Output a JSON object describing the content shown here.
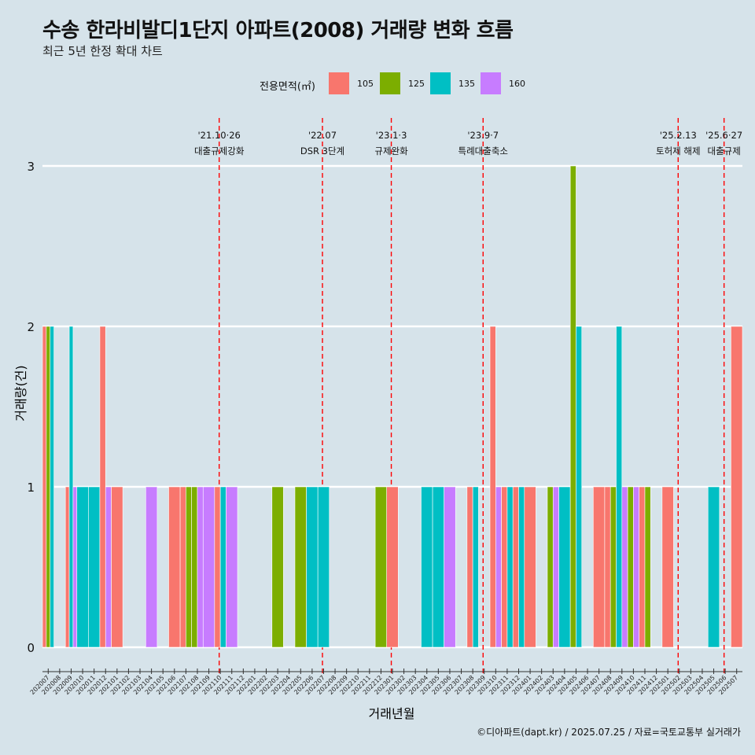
{
  "title": "수송 한라비발디1단지 아파트(2008) 거래량 변화 흐름",
  "subtitle": "최근 5년 한정 확대 차트",
  "caption": "©디아파트(dapt.kr) / 2025.07.25 / 자료=국토교통부 실거래가",
  "legend": {
    "title": "전용면적(㎡)",
    "items": [
      {
        "label": "105",
        "color": "#F8766D"
      },
      {
        "label": "125",
        "color": "#7CAE00"
      },
      {
        "label": "135",
        "color": "#00BFC4"
      },
      {
        "label": "160",
        "color": "#C77CFF"
      }
    ]
  },
  "chart_data": {
    "type": "bar",
    "xlabel": "거래년월",
    "ylabel": "거래량(건)",
    "ylim": [
      0,
      3
    ],
    "yticks": [
      0,
      1,
      2,
      3
    ],
    "categories": [
      "202007",
      "202008",
      "202009",
      "202010",
      "202011",
      "202012",
      "202101",
      "202102",
      "202103",
      "202104",
      "202105",
      "202106",
      "202107",
      "202108",
      "202109",
      "202110",
      "202111",
      "202112",
      "202201",
      "202202",
      "202203",
      "202204",
      "202205",
      "202206",
      "202207",
      "202208",
      "202209",
      "202210",
      "202211",
      "202212",
      "202301",
      "202302",
      "202303",
      "202304",
      "202305",
      "202306",
      "202307",
      "202308",
      "202309",
      "202310",
      "202311",
      "202312",
      "202401",
      "202402",
      "202403",
      "202404",
      "202405",
      "202406",
      "202407",
      "202408",
      "202409",
      "202410",
      "202411",
      "202412",
      "202501",
      "202502",
      "202503",
      "202504",
      "202505",
      "202506",
      "202507"
    ],
    "series": [
      {
        "name": "105",
        "color": "#F8766D",
        "values": [
          2,
          0,
          1,
          0,
          0,
          2,
          1,
          0,
          0,
          0,
          0,
          1,
          1,
          0,
          0,
          1,
          0,
          0,
          0,
          0,
          0,
          0,
          0,
          0,
          0,
          0,
          0,
          0,
          0,
          0,
          1,
          0,
          0,
          0,
          0,
          0,
          0,
          1,
          0,
          2,
          1,
          1,
          1,
          0,
          0,
          0,
          0,
          0,
          1,
          1,
          0,
          0,
          1,
          0,
          1,
          0,
          0,
          0,
          0,
          0,
          2
        ]
      },
      {
        "name": "125",
        "color": "#7CAE00",
        "values": [
          2,
          0,
          0,
          0,
          0,
          0,
          0,
          0,
          0,
          0,
          0,
          0,
          1,
          1,
          0,
          0,
          0,
          0,
          0,
          0,
          1,
          0,
          1,
          0,
          0,
          0,
          0,
          0,
          0,
          1,
          0,
          0,
          0,
          0,
          0,
          0,
          0,
          0,
          0,
          0,
          0,
          0,
          0,
          0,
          1,
          0,
          3,
          0,
          0,
          1,
          0,
          1,
          1,
          0,
          0,
          0,
          0,
          0,
          0,
          0,
          0
        ]
      },
      {
        "name": "135",
        "color": "#00BFC4",
        "values": [
          2,
          0,
          2,
          1,
          1,
          0,
          0,
          0,
          0,
          0,
          0,
          0,
          0,
          0,
          0,
          1,
          0,
          0,
          0,
          0,
          0,
          0,
          0,
          1,
          1,
          0,
          0,
          0,
          0,
          0,
          0,
          0,
          0,
          1,
          1,
          0,
          0,
          1,
          0,
          0,
          1,
          1,
          0,
          0,
          0,
          1,
          2,
          0,
          0,
          0,
          2,
          0,
          0,
          0,
          0,
          0,
          0,
          0,
          1,
          0,
          0
        ]
      },
      {
        "name": "160",
        "color": "#C77CFF",
        "values": [
          0,
          0,
          1,
          0,
          0,
          1,
          0,
          0,
          0,
          1,
          0,
          0,
          0,
          1,
          1,
          0,
          1,
          0,
          0,
          0,
          0,
          0,
          0,
          0,
          0,
          0,
          0,
          0,
          0,
          0,
          0,
          0,
          0,
          0,
          0,
          1,
          0,
          0,
          0,
          1,
          0,
          0,
          0,
          0,
          1,
          0,
          0,
          0,
          0,
          0,
          1,
          1,
          0,
          0,
          0,
          0,
          0,
          0,
          0,
          0,
          0
        ]
      }
    ],
    "annotations": [
      {
        "month": "202110",
        "date": "'21.10·26",
        "label": "대출규제강화"
      },
      {
        "month": "202207",
        "date": "'22.07",
        "label": "DSR 3단계"
      },
      {
        "month": "202301",
        "date": "'23.1·3",
        "label": "규제완화"
      },
      {
        "month": "202309",
        "date": "'23.9·7",
        "label": "특례대출축소"
      },
      {
        "month": "202502",
        "date": "'25.2.13",
        "label": "토허제 해제"
      },
      {
        "month": "202506",
        "date": "'25.6·27",
        "label": "대출규제"
      }
    ]
  }
}
